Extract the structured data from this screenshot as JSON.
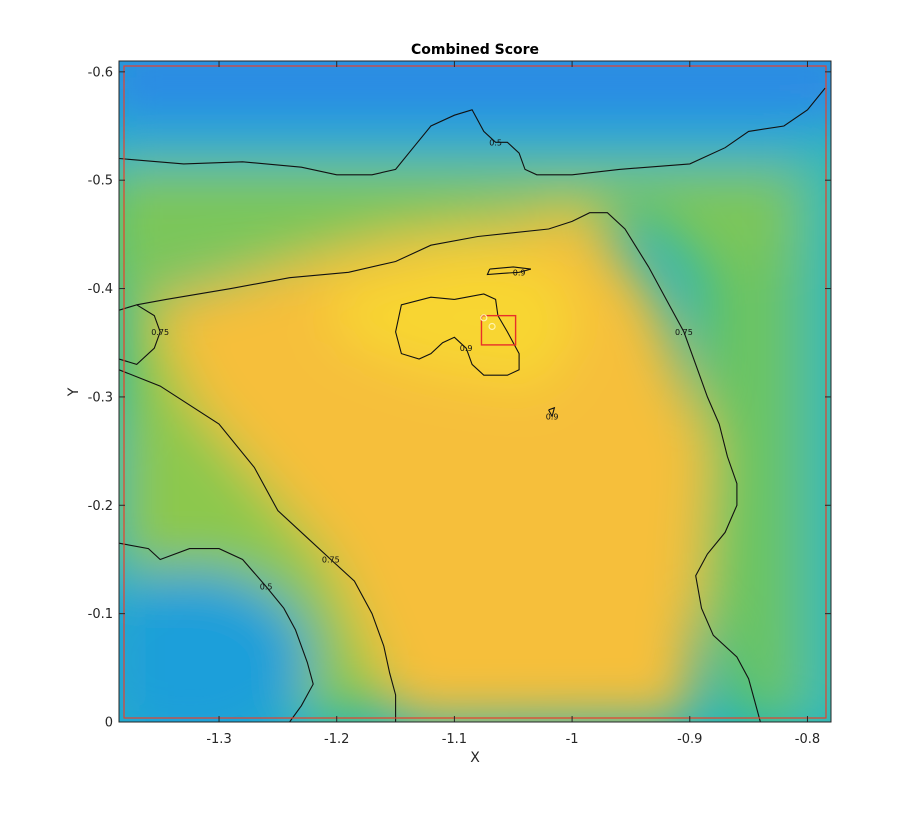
{
  "chart_data": {
    "type": "heatmap",
    "title": "Combined Score",
    "xlabel": "X",
    "ylabel": "Y",
    "xlim": [
      -1.385,
      -0.78
    ],
    "ylim": [
      -0.61,
      0
    ],
    "y_axis_reversed": true,
    "colormap": "parula",
    "x_ticks": [
      -1.3,
      -1.2,
      -1.1,
      -1.0,
      -0.9,
      -0.8
    ],
    "x_tick_labels": [
      "-1.3",
      "-1.2",
      "-1.1",
      "-1",
      "-0.9",
      "-0.8"
    ],
    "y_ticks": [
      -0.6,
      -0.5,
      -0.4,
      -0.3,
      -0.2,
      -0.1,
      0
    ],
    "y_tick_labels": [
      "-0.6",
      "-0.5",
      "-0.4",
      "-0.3",
      "-0.2",
      "-0.1",
      "0"
    ],
    "contour_levels": [
      "0.5",
      "0.75",
      "0.9"
    ],
    "contours": [
      {
        "level": "0.5",
        "points": [
          [
            -1.385,
            -0.52
          ],
          [
            -1.33,
            -0.515
          ],
          [
            -1.28,
            -0.517
          ],
          [
            -1.23,
            -0.512
          ],
          [
            -1.2,
            -0.505
          ],
          [
            -1.17,
            -0.505
          ],
          [
            -1.15,
            -0.51
          ],
          [
            -1.135,
            -0.53
          ],
          [
            -1.12,
            -0.55
          ],
          [
            -1.1,
            -0.56
          ],
          [
            -1.085,
            -0.565
          ],
          [
            -1.075,
            -0.545
          ],
          [
            -1.065,
            -0.535
          ],
          [
            -1.055,
            -0.535
          ],
          [
            -1.045,
            -0.525
          ],
          [
            -1.04,
            -0.51
          ],
          [
            -1.03,
            -0.505
          ],
          [
            -1.0,
            -0.505
          ],
          [
            -0.96,
            -0.51
          ],
          [
            -0.9,
            -0.515
          ],
          [
            -0.87,
            -0.53
          ],
          [
            -0.85,
            -0.545
          ],
          [
            -0.82,
            -0.55
          ],
          [
            -0.8,
            -0.565
          ],
          [
            -0.785,
            -0.585
          ]
        ]
      },
      {
        "level": "0.5",
        "points": [
          [
            -1.385,
            -0.165
          ],
          [
            -1.36,
            -0.16
          ],
          [
            -1.35,
            -0.15
          ],
          [
            -1.325,
            -0.16
          ],
          [
            -1.3,
            -0.16
          ],
          [
            -1.28,
            -0.15
          ],
          [
            -1.26,
            -0.125
          ],
          [
            -1.245,
            -0.105
          ],
          [
            -1.235,
            -0.085
          ],
          [
            -1.225,
            -0.055
          ],
          [
            -1.22,
            -0.035
          ],
          [
            -1.23,
            -0.015
          ],
          [
            -1.24,
            0
          ]
        ]
      },
      {
        "level": "0.75",
        "points": [
          [
            -1.385,
            -0.325
          ],
          [
            -1.35,
            -0.31
          ],
          [
            -1.3,
            -0.275
          ],
          [
            -1.27,
            -0.235
          ],
          [
            -1.25,
            -0.195
          ],
          [
            -1.225,
            -0.17
          ],
          [
            -1.205,
            -0.15
          ],
          [
            -1.185,
            -0.13
          ],
          [
            -1.17,
            -0.1
          ],
          [
            -1.16,
            -0.07
          ],
          [
            -1.155,
            -0.045
          ],
          [
            -1.15,
            -0.025
          ],
          [
            -1.15,
            0
          ]
        ]
      },
      {
        "level": "0.75",
        "points": [
          [
            -1.385,
            -0.38
          ],
          [
            -1.37,
            -0.385
          ],
          [
            -1.355,
            -0.375
          ],
          [
            -1.35,
            -0.36
          ],
          [
            -1.355,
            -0.345
          ],
          [
            -1.37,
            -0.33
          ],
          [
            -1.385,
            -0.335
          ]
        ]
      },
      {
        "level": "0.75",
        "points": [
          [
            -1.37,
            -0.385
          ],
          [
            -1.345,
            -0.39
          ],
          [
            -1.29,
            -0.4
          ],
          [
            -1.24,
            -0.41
          ],
          [
            -1.19,
            -0.415
          ],
          [
            -1.15,
            -0.425
          ],
          [
            -1.12,
            -0.44
          ],
          [
            -1.08,
            -0.448
          ],
          [
            -1.02,
            -0.455
          ],
          [
            -1.0,
            -0.462
          ],
          [
            -0.985,
            -0.47
          ],
          [
            -0.97,
            -0.47
          ],
          [
            -0.955,
            -0.455
          ],
          [
            -0.935,
            -0.42
          ],
          [
            -0.92,
            -0.39
          ],
          [
            -0.905,
            -0.36
          ],
          [
            -0.895,
            -0.33
          ],
          [
            -0.885,
            -0.3
          ],
          [
            -0.875,
            -0.275
          ],
          [
            -0.868,
            -0.245
          ],
          [
            -0.86,
            -0.22
          ],
          [
            -0.86,
            -0.2
          ],
          [
            -0.87,
            -0.175
          ],
          [
            -0.885,
            -0.155
          ],
          [
            -0.895,
            -0.135
          ],
          [
            -0.89,
            -0.105
          ],
          [
            -0.88,
            -0.08
          ],
          [
            -0.86,
            -0.06
          ],
          [
            -0.85,
            -0.04
          ],
          [
            -0.845,
            -0.02
          ],
          [
            -0.84,
            0
          ]
        ]
      }
    ],
    "islands_0_9": [
      {
        "points": [
          [
            -1.1,
            -0.39
          ],
          [
            -1.075,
            -0.395
          ],
          [
            -1.065,
            -0.39
          ],
          [
            -1.063,
            -0.375
          ],
          [
            -1.055,
            -0.36
          ],
          [
            -1.045,
            -0.34
          ],
          [
            -1.045,
            -0.325
          ],
          [
            -1.055,
            -0.32
          ],
          [
            -1.075,
            -0.32
          ],
          [
            -1.085,
            -0.33
          ],
          [
            -1.09,
            -0.345
          ],
          [
            -1.1,
            -0.355
          ],
          [
            -1.11,
            -0.35
          ],
          [
            -1.12,
            -0.34
          ],
          [
            -1.13,
            -0.335
          ],
          [
            -1.145,
            -0.34
          ],
          [
            -1.15,
            -0.36
          ],
          [
            -1.145,
            -0.385
          ],
          [
            -1.12,
            -0.392
          ],
          [
            -1.1,
            -0.39
          ]
        ]
      },
      {
        "points": [
          [
            -1.07,
            -0.418
          ],
          [
            -1.05,
            -0.42
          ],
          [
            -1.035,
            -0.418
          ],
          [
            -1.045,
            -0.415
          ],
          [
            -1.06,
            -0.414
          ],
          [
            -1.072,
            -0.413
          ],
          [
            -1.07,
            -0.418
          ]
        ]
      },
      {
        "points": [
          [
            -1.02,
            -0.288
          ],
          [
            -1.015,
            -0.29
          ],
          [
            -1.017,
            -0.282
          ],
          [
            -1.02,
            -0.288
          ]
        ]
      }
    ],
    "highlight_box": {
      "x_range": [
        -1.077,
        -1.048
      ],
      "y_range": [
        -0.375,
        -0.348
      ]
    },
    "highlight_points": [
      [
        -1.075,
        -0.373
      ],
      [
        -1.068,
        -0.365
      ]
    ]
  }
}
